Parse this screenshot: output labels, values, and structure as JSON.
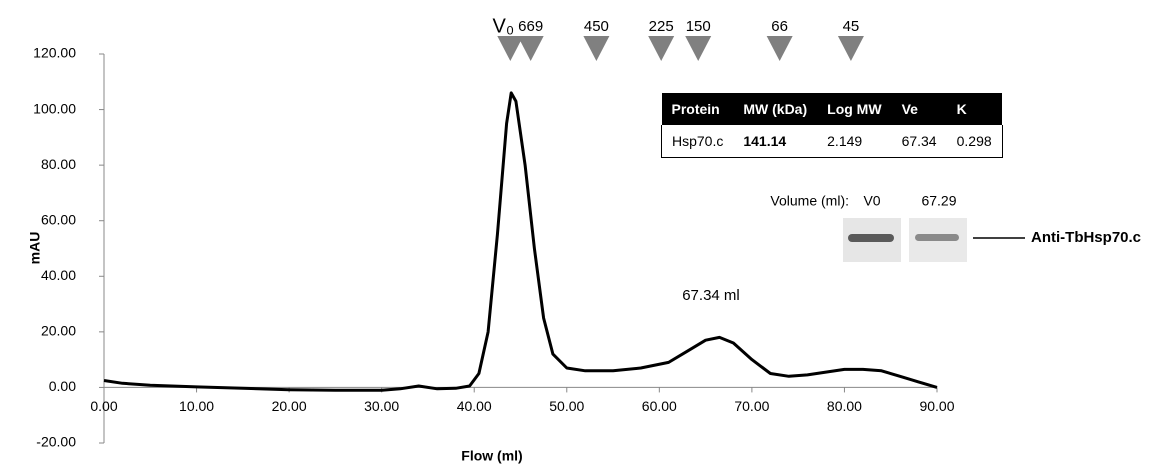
{
  "chart_data": {
    "type": "line",
    "x": [
      0,
      2,
      5,
      10,
      15,
      20,
      25,
      30,
      32,
      34,
      36,
      38,
      39.5,
      40.5,
      41.5,
      42.5,
      43.5,
      44,
      44.5,
      45.5,
      46.5,
      47.5,
      48.5,
      50,
      52,
      55,
      58,
      61,
      63,
      65,
      66.5,
      68,
      70,
      72,
      74,
      76,
      78,
      80,
      82,
      84,
      86,
      88,
      90
    ],
    "series": [
      {
        "color": "#000000",
        "values": [
          2.5,
          1.5,
          0.8,
          0.2,
          -0.3,
          -0.8,
          -1,
          -1,
          -0.5,
          0.5,
          -0.5,
          -0.3,
          0.5,
          5,
          20,
          55,
          95,
          106,
          103,
          80,
          50,
          25,
          12,
          7,
          6,
          6,
          7,
          9,
          13,
          17,
          18,
          16,
          10,
          5,
          4,
          4.5,
          5.5,
          6.5,
          6.5,
          6,
          4,
          2,
          0
        ]
      }
    ],
    "xlim": [
      0,
      90
    ],
    "ylim": [
      -20,
      120
    ],
    "xticks": [
      {
        "value": 0,
        "label": "0.00"
      },
      {
        "value": 10,
        "label": "10.00"
      },
      {
        "value": 20,
        "label": "20.00"
      },
      {
        "value": 30,
        "label": "30.00"
      },
      {
        "value": 40,
        "label": "40.00"
      },
      {
        "value": 50,
        "label": "50.00"
      },
      {
        "value": 60,
        "label": "60.00"
      },
      {
        "value": 70,
        "label": "70.00"
      },
      {
        "value": 80,
        "label": "80.00"
      },
      {
        "value": 90,
        "label": "90.00"
      }
    ],
    "yticks": [
      {
        "value": -20,
        "label": "-20.00"
      },
      {
        "value": 0,
        "label": "0.00"
      },
      {
        "value": 20,
        "label": "20.00"
      },
      {
        "value": 40,
        "label": "40.00"
      },
      {
        "value": 60,
        "label": "60.00"
      },
      {
        "value": 80,
        "label": "80.00"
      },
      {
        "value": 100,
        "label": "100.00"
      },
      {
        "value": 120,
        "label": "120.00"
      }
    ],
    "xlabel": "Flow (ml)",
    "ylabel": "mAU",
    "markers": [
      {
        "x": 43.9,
        "label": "V₀"
      },
      {
        "x": 46.1,
        "label": "669"
      },
      {
        "x": 53.2,
        "label": "450"
      },
      {
        "x": 60.2,
        "label": "225"
      },
      {
        "x": 64.2,
        "label": "150"
      },
      {
        "x": 73.0,
        "label": "66"
      },
      {
        "x": 80.7,
        "label": "45"
      }
    ],
    "marker_color": "#808080",
    "annotation": "67.34 ml"
  },
  "table": {
    "header": [
      "Protein",
      "MW (kDa)",
      "Log MW",
      "Ve",
      "K"
    ],
    "rows": [
      [
        "Hsp70.c",
        "141.14",
        "2.149",
        "67.34",
        "0.298"
      ]
    ]
  },
  "blot": {
    "volume_label": "Volume (ml):",
    "lanes": [
      "V0",
      "67.29"
    ],
    "antibody": "Anti-TbHsp70.c"
  }
}
